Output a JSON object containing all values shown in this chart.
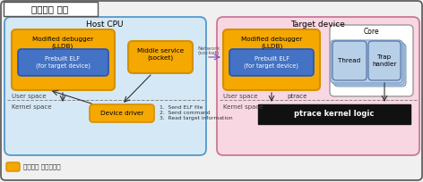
{
  "title": "실험환경 구성",
  "host_cpu_label": "Host CPU",
  "target_device_label": "Target device",
  "user_space": "User space",
  "kernel_space": "Kernel space",
  "mod_debugger_label": "Modified debugger\n(LLDB)",
  "prebuilt_elf_label": "Prebuilt ELF\n(for target device)",
  "middle_service_label": "Middle service\n(socket)",
  "device_driver_label": "Device driver",
  "network_label": "Network\n(socket)",
  "ptrace_label": "ptrace",
  "ptrace_kernel_label": "ptrace kernel logic",
  "core_label": "Core",
  "thread_label": "Thread",
  "trap_handler_label": "Trap\nhandler",
  "legend_label": "개발대상 소프트웨어",
  "send_elf": "1.  Send ELF file",
  "send_cmd": "2.  Send command",
  "read_target": "3.  Read target information",
  "bg_color": "#f0f0f0",
  "host_bg": "#d5e8f5",
  "target_bg": "#f8d7e3",
  "orange_box": "#f5a800",
  "blue_box": "#4472c4",
  "core_bg": "#ffffff",
  "thread_bg": "#b8cfe8",
  "kernel_black": "#111111",
  "kernel_text": "#ffffff",
  "border_dark": "#555555",
  "border_blue": "#5599cc",
  "border_pink": "#cc7799",
  "border_orange": "#d49000"
}
